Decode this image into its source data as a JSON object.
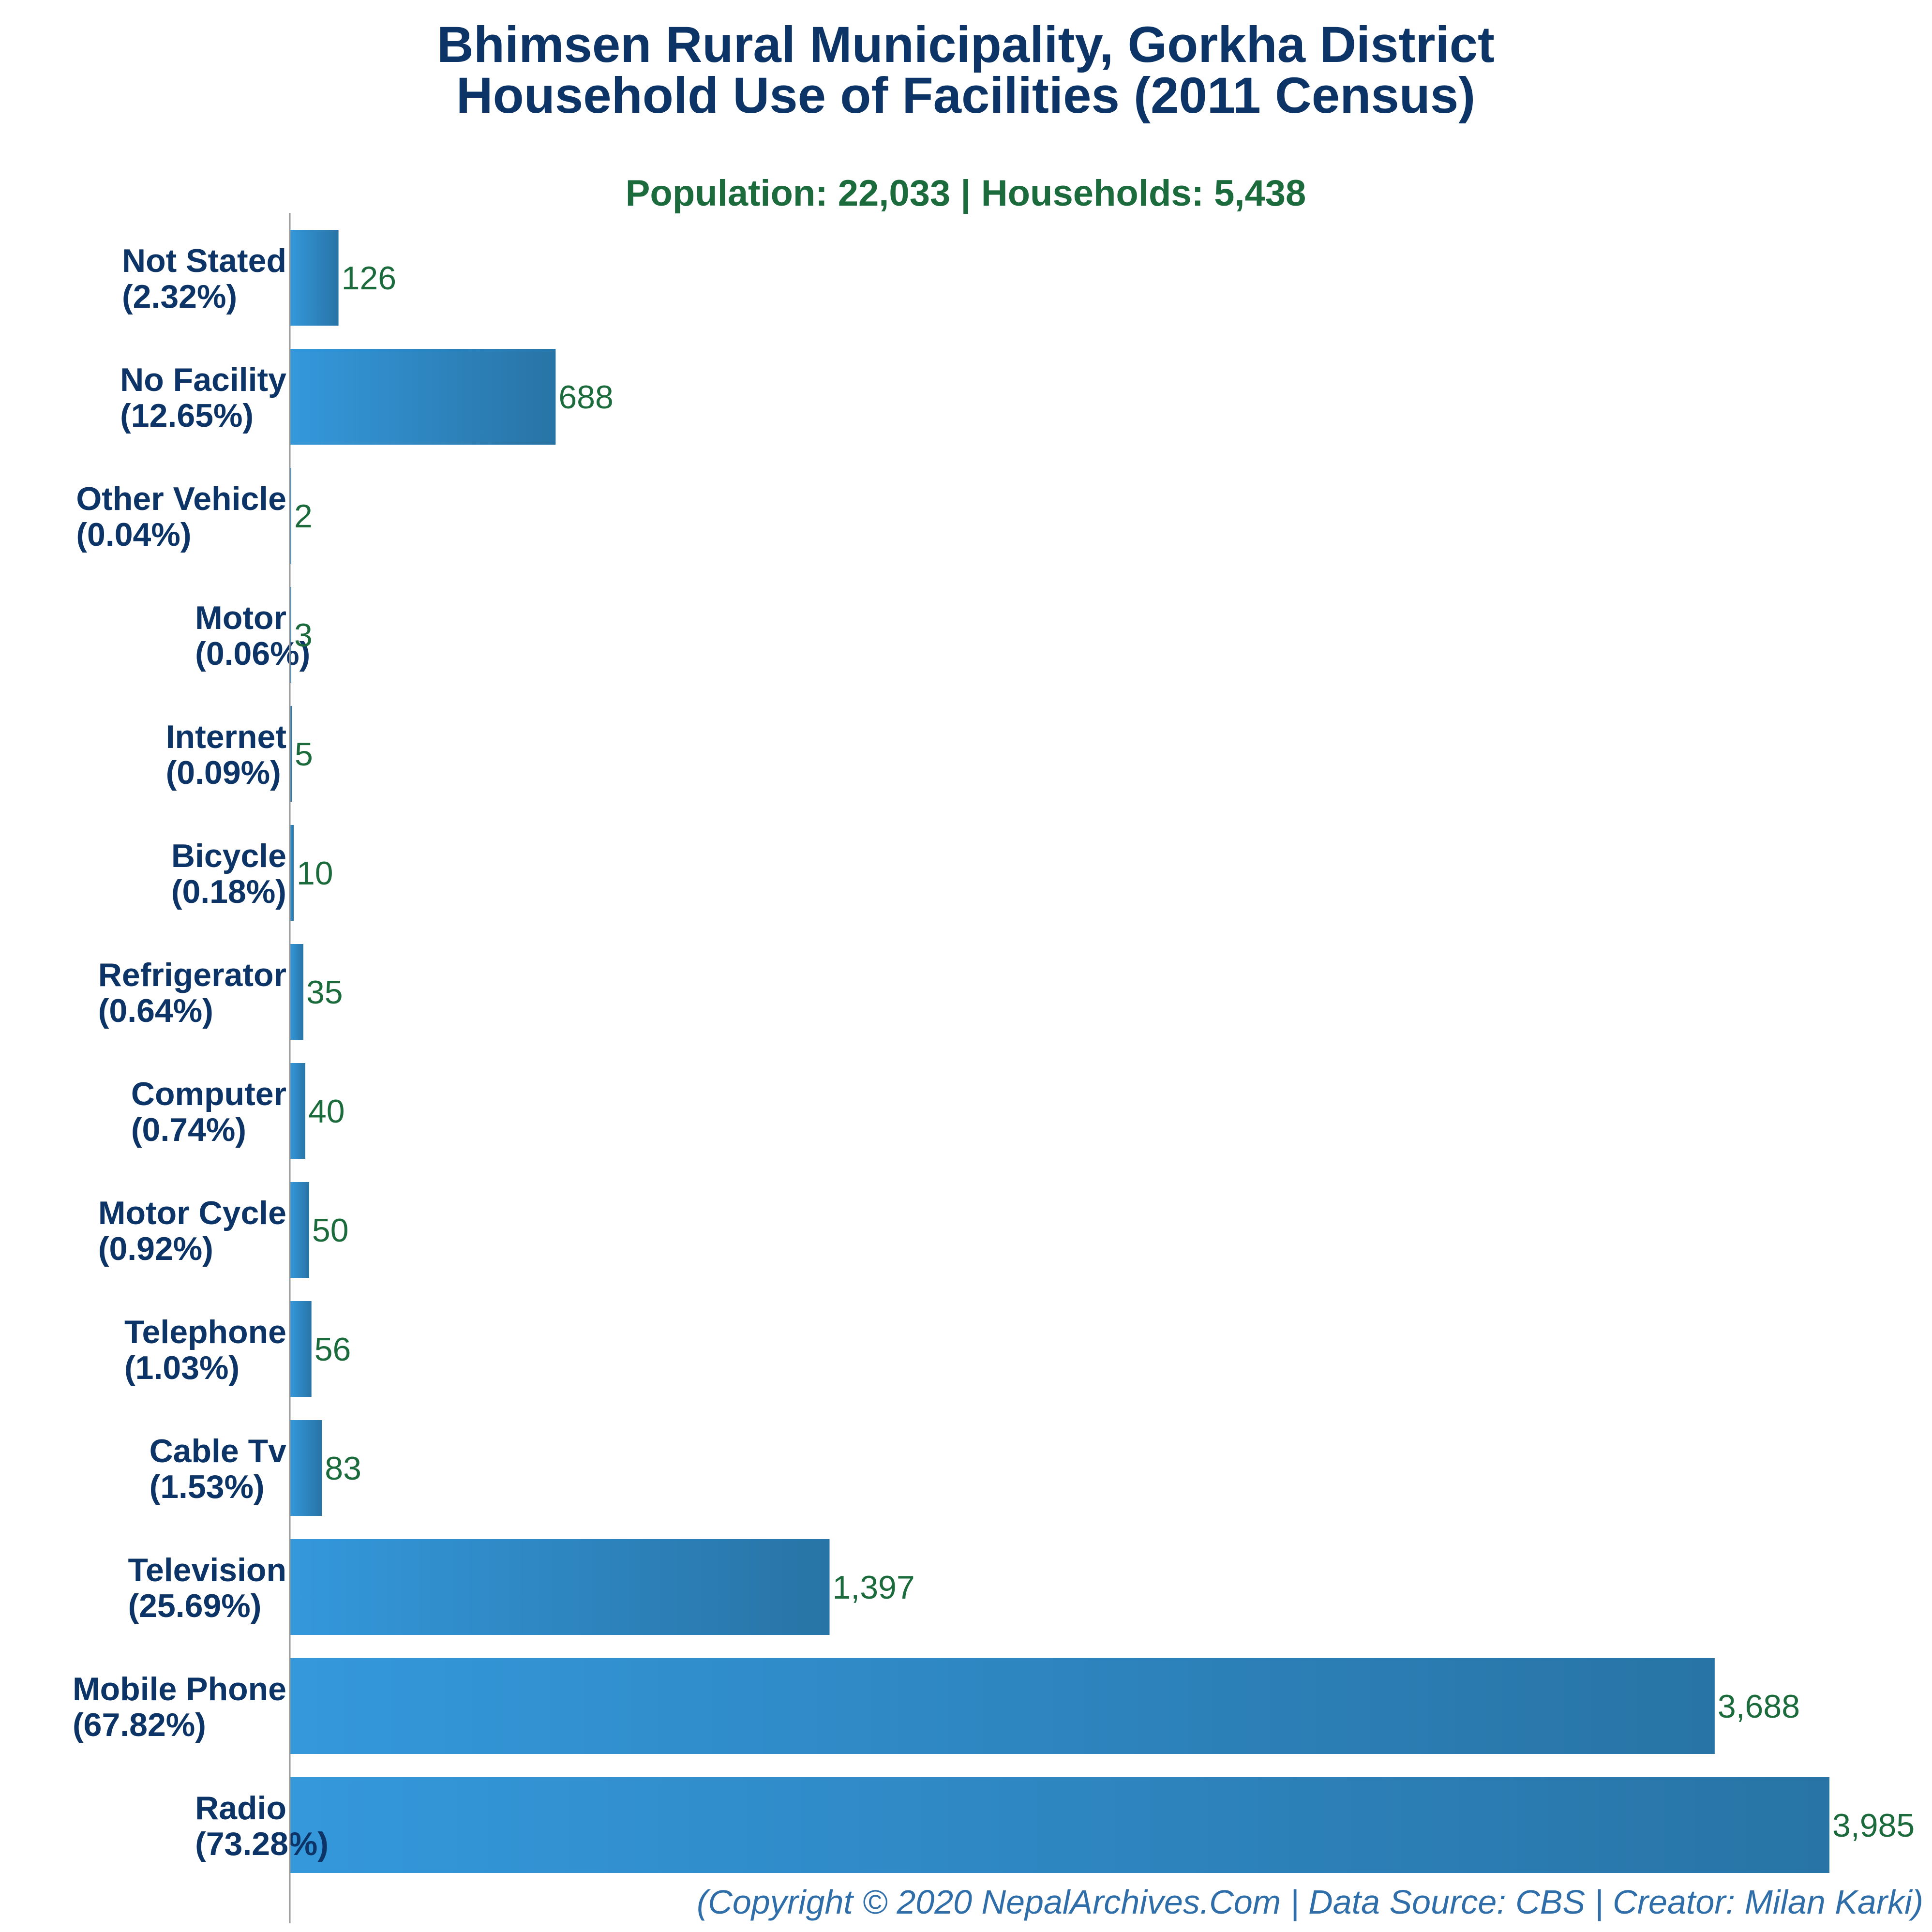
{
  "chart_data": {
    "type": "bar",
    "orientation": "horizontal",
    "title": [
      "Bhimsen Rural Municipality, Gorkha District",
      "Household Use of Facilities (2011 Census)"
    ],
    "subtitle": "Population: 22,033 | Households: 5,438",
    "categories": [
      {
        "name": "Not Stated",
        "pct": "(2.32%)"
      },
      {
        "name": "No Facility",
        "pct": "(12.65%)"
      },
      {
        "name": "Other Vehicle",
        "pct": "(0.04%)"
      },
      {
        "name": "Motor",
        "pct": "(0.06%)"
      },
      {
        "name": "Internet",
        "pct": "(0.09%)"
      },
      {
        "name": "Bicycle",
        "pct": "(0.18%)"
      },
      {
        "name": "Refrigerator",
        "pct": "(0.64%)"
      },
      {
        "name": "Computer",
        "pct": "(0.74%)"
      },
      {
        "name": "Motor Cycle",
        "pct": "(0.92%)"
      },
      {
        "name": "Telephone",
        "pct": "(1.03%)"
      },
      {
        "name": "Cable Tv",
        "pct": "(1.53%)"
      },
      {
        "name": "Television",
        "pct": "(25.69%)"
      },
      {
        "name": "Mobile Phone",
        "pct": "(67.82%)"
      },
      {
        "name": "Radio",
        "pct": "(73.28%)"
      }
    ],
    "values": [
      126,
      688,
      2,
      3,
      5,
      10,
      35,
      40,
      50,
      56,
      83,
      1397,
      3688,
      3985
    ],
    "value_labels": [
      "126",
      "688",
      "2",
      "3",
      "5",
      "10",
      "35",
      "40",
      "50",
      "56",
      "83",
      "1,397",
      "3,688",
      "3,985"
    ],
    "xlim": [
      0,
      3985
    ],
    "grid": false,
    "legend": "none",
    "colors": {
      "bar_start": "#3498db",
      "bar_end": "#2874a6",
      "title": "#0d3466",
      "subtitle": "#1c6b3c",
      "value_label": "#1c6b3c",
      "category_label": "#0d3466",
      "footer": "#2f6ea8",
      "axis": "#9a9a9a"
    }
  },
  "footer": "(Copyright © 2020 NepalArchives.Com | Data Source: CBS | Creator: Milan Karki)"
}
